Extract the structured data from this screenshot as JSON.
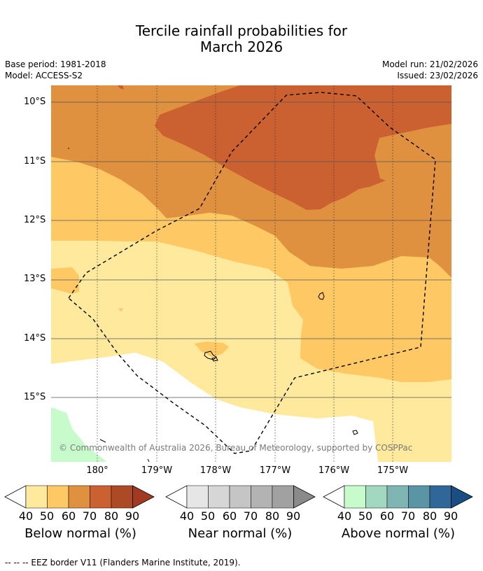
{
  "title_line1": "Tercile rainfall probabilities for",
  "title_line2": "March 2026",
  "base_period": "Base period: 1981-2018",
  "model": "Model: ACCESS-S2",
  "model_run": "Model run: 21/02/2026",
  "issued": "Issued: 23/02/2026",
  "lat_labels": [
    "10°S",
    "11°S",
    "12°S",
    "13°S",
    "14°S",
    "15°S"
  ],
  "lon_labels": [
    "180°",
    "179°W",
    "178°W",
    "177°W",
    "176°W",
    "175°W"
  ],
  "copyright": "© Commonwealth of Australia 2026, Bureau of Meteorology, supported by COSPPac",
  "colorbars": [
    {
      "label": "Below normal (%)",
      "ticks": [
        "40",
        "50",
        "60",
        "70",
        "80",
        "90"
      ],
      "colors": [
        "#ffffff",
        "#fee99d",
        "#fec965",
        "#e0913f",
        "#cb6030",
        "#ad4a26",
        "#a13a20"
      ]
    },
    {
      "label": "Near normal (%)",
      "ticks": [
        "40",
        "50",
        "60",
        "70",
        "80",
        "90"
      ],
      "colors": [
        "#ffffff",
        "#e6e6e6",
        "#d6d6d6",
        "#c5c5c5",
        "#b3b3b3",
        "#a1a1a1",
        "#8a8a8a"
      ]
    },
    {
      "label": "Above normal (%)",
      "ticks": [
        "40",
        "50",
        "60",
        "70",
        "80",
        "90"
      ],
      "colors": [
        "#ffffff",
        "#c8fbcb",
        "#a1d8bf",
        "#7fb6b3",
        "#5b94a5",
        "#2f6799",
        "#194e82"
      ]
    }
  ],
  "footer": "--  --  -- EEZ border V11 (Flanders Marine Institute, 2019)."
}
